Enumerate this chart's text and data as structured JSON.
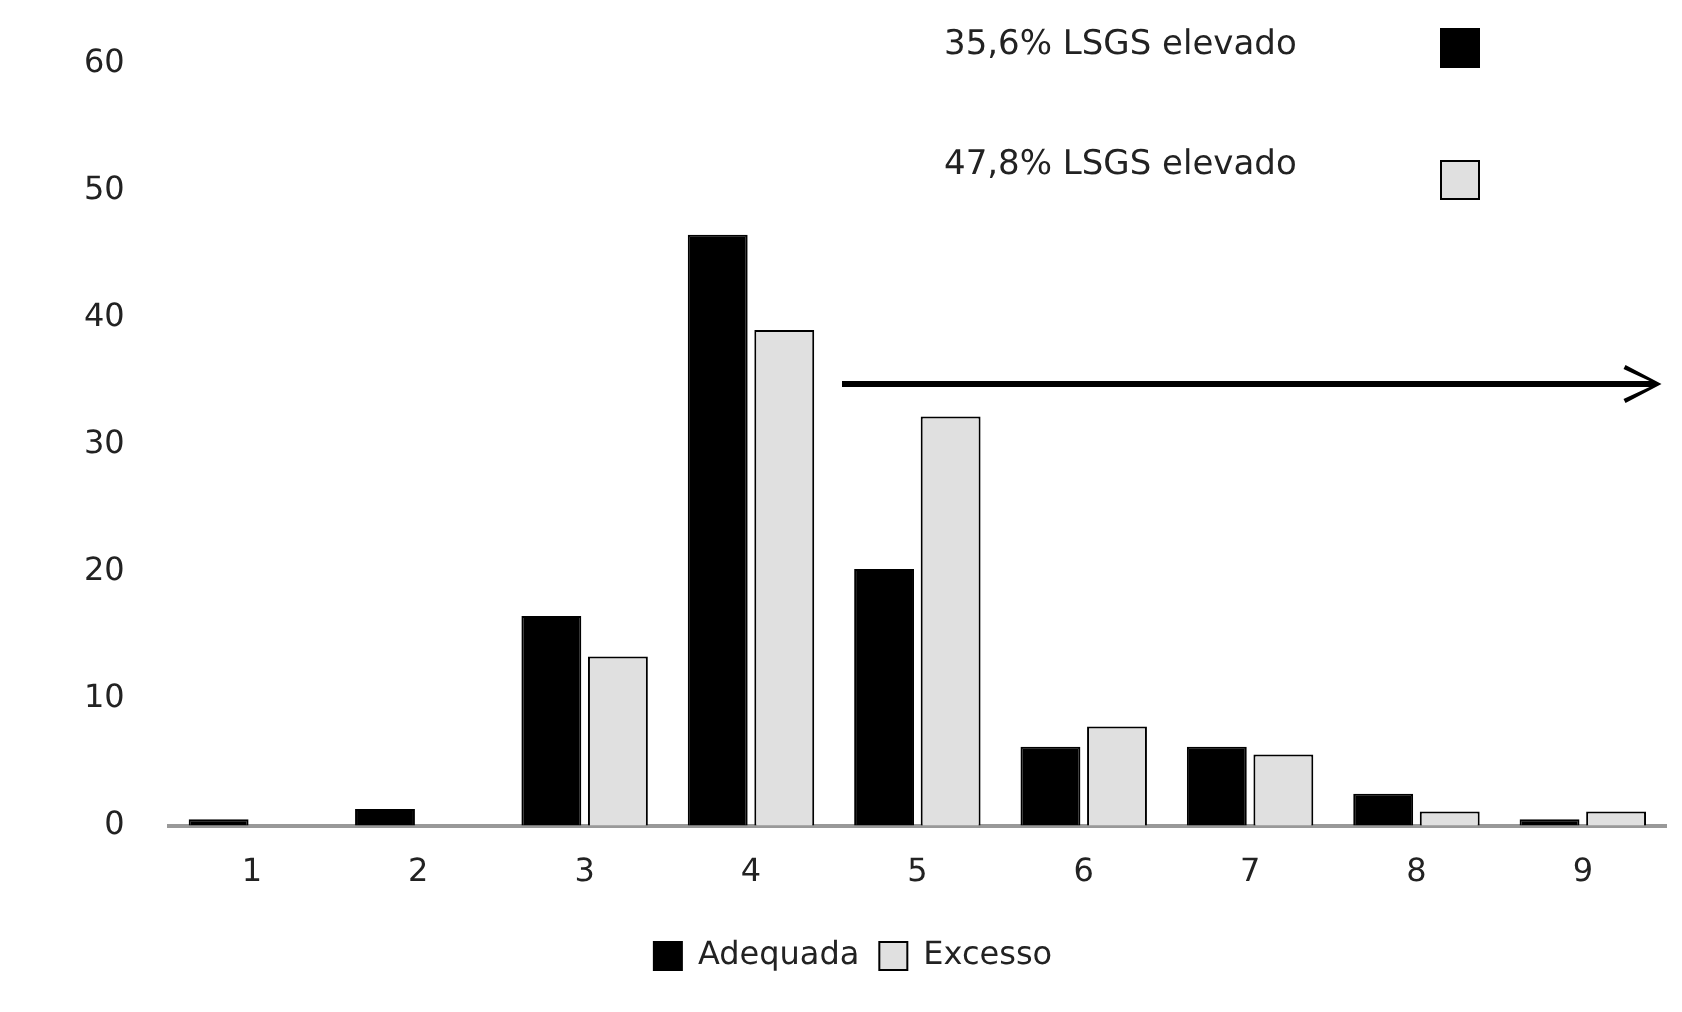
{
  "chart_data": {
    "type": "bar",
    "categories": [
      "1",
      "2",
      "3",
      "4",
      "5",
      "6",
      "7",
      "8",
      "9"
    ],
    "series": [
      {
        "name": "Adequada",
        "color": "#000000",
        "values": [
          0.5,
          1.3,
          16.5,
          46.5,
          20.2,
          6.2,
          6.2,
          2.5,
          0.5
        ]
      },
      {
        "name": "Excesso",
        "color": "#e0e0e0",
        "values": [
          0,
          0,
          13.3,
          39.0,
          32.2,
          7.8,
          5.6,
          1.1,
          1.1
        ]
      }
    ],
    "ylim": [
      0,
      60
    ],
    "yticks": [
      0,
      10,
      20,
      30,
      40,
      50,
      60
    ],
    "grid": false,
    "legend": "bottom",
    "annotations": [
      "35,6% LSGS elevado",
      "47,8% LSGS elevado"
    ]
  }
}
